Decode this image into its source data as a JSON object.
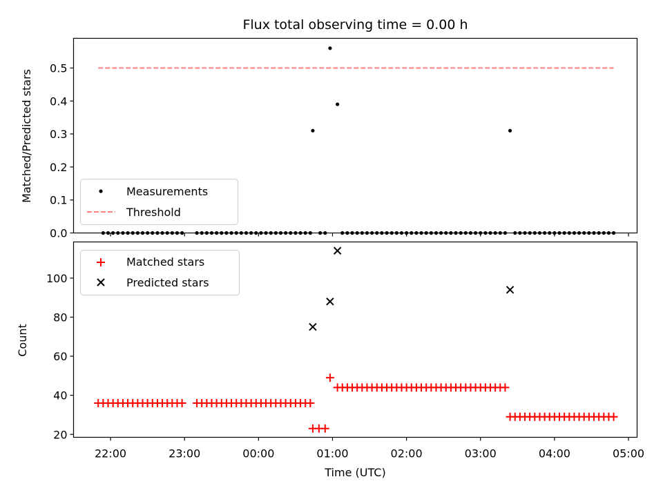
{
  "chart_data": [
    {
      "type": "scatter",
      "title": "Flux total observing time = 0.00 h",
      "xlabel": "",
      "ylabel": "Matched/Predicted stars",
      "ylim": [
        0,
        0.59
      ],
      "yticks": [
        0.0,
        0.1,
        0.2,
        0.3,
        0.4,
        0.5
      ],
      "ytick_labels": [
        "0.0",
        "0.1",
        "0.2",
        "0.3",
        "0.4",
        "0.5"
      ],
      "legend": {
        "position": "lower-left",
        "entries": [
          {
            "label": "Measurements",
            "marker": "dot",
            "color": "#000000"
          },
          {
            "label": "Threshold",
            "marker": "dashed-line",
            "color": "#ff7f7f"
          }
        ]
      },
      "series": [
        {
          "name": "Measurements",
          "color": "#000000",
          "points": [
            [
              "21:54",
              0
            ],
            [
              "21:58",
              0
            ],
            [
              "22:02",
              0
            ],
            [
              "22:06",
              0
            ],
            [
              "22:10",
              0
            ],
            [
              "22:14",
              0
            ],
            [
              "22:18",
              0
            ],
            [
              "22:22",
              0
            ],
            [
              "22:26",
              0
            ],
            [
              "22:30",
              0
            ],
            [
              "22:34",
              0
            ],
            [
              "22:38",
              0
            ],
            [
              "22:42",
              0
            ],
            [
              "22:46",
              0
            ],
            [
              "22:50",
              0
            ],
            [
              "22:54",
              0
            ],
            [
              "22:58",
              0
            ],
            [
              "23:10",
              0
            ],
            [
              "23:14",
              0
            ],
            [
              "23:18",
              0
            ],
            [
              "23:22",
              0
            ],
            [
              "23:26",
              0
            ],
            [
              "23:30",
              0
            ],
            [
              "23:34",
              0
            ],
            [
              "23:38",
              0
            ],
            [
              "23:42",
              0
            ],
            [
              "23:46",
              0
            ],
            [
              "23:50",
              0
            ],
            [
              "23:54",
              0
            ],
            [
              "23:58",
              0
            ],
            [
              "00:02",
              0
            ],
            [
              "00:06",
              0
            ],
            [
              "00:10",
              0
            ],
            [
              "00:14",
              0
            ],
            [
              "00:18",
              0
            ],
            [
              "00:22",
              0
            ],
            [
              "00:26",
              0
            ],
            [
              "00:30",
              0
            ],
            [
              "00:34",
              0
            ],
            [
              "00:38",
              0
            ],
            [
              "00:42",
              0
            ],
            [
              "00:44",
              0.31
            ],
            [
              "00:50",
              0
            ],
            [
              "00:54",
              0
            ],
            [
              "00:58",
              0.56
            ],
            [
              "01:04",
              0.39
            ],
            [
              "01:08",
              0
            ],
            [
              "01:12",
              0
            ],
            [
              "01:16",
              0
            ],
            [
              "01:20",
              0
            ],
            [
              "01:24",
              0
            ],
            [
              "01:28",
              0
            ],
            [
              "01:32",
              0
            ],
            [
              "01:36",
              0
            ],
            [
              "01:40",
              0
            ],
            [
              "01:44",
              0
            ],
            [
              "01:48",
              0
            ],
            [
              "01:52",
              0
            ],
            [
              "01:56",
              0
            ],
            [
              "02:00",
              0
            ],
            [
              "02:04",
              0
            ],
            [
              "02:08",
              0
            ],
            [
              "02:12",
              0
            ],
            [
              "02:16",
              0
            ],
            [
              "02:20",
              0
            ],
            [
              "02:24",
              0
            ],
            [
              "02:28",
              0
            ],
            [
              "02:32",
              0
            ],
            [
              "02:36",
              0
            ],
            [
              "02:40",
              0
            ],
            [
              "02:44",
              0
            ],
            [
              "02:48",
              0
            ],
            [
              "02:52",
              0
            ],
            [
              "02:56",
              0
            ],
            [
              "03:00",
              0
            ],
            [
              "03:04",
              0
            ],
            [
              "03:08",
              0
            ],
            [
              "03:12",
              0
            ],
            [
              "03:16",
              0
            ],
            [
              "03:20",
              0
            ],
            [
              "03:24",
              0.31
            ],
            [
              "03:28",
              0
            ],
            [
              "03:32",
              0
            ],
            [
              "03:36",
              0
            ],
            [
              "03:40",
              0
            ],
            [
              "03:44",
              0
            ],
            [
              "03:48",
              0
            ],
            [
              "03:52",
              0
            ],
            [
              "03:56",
              0
            ],
            [
              "04:00",
              0
            ],
            [
              "04:04",
              0
            ],
            [
              "04:08",
              0
            ],
            [
              "04:12",
              0
            ],
            [
              "04:16",
              0
            ],
            [
              "04:20",
              0
            ],
            [
              "04:24",
              0
            ],
            [
              "04:28",
              0
            ],
            [
              "04:32",
              0
            ],
            [
              "04:36",
              0
            ],
            [
              "04:40",
              0
            ],
            [
              "04:44",
              0
            ],
            [
              "04:48",
              0
            ]
          ]
        },
        {
          "name": "Threshold",
          "color": "#ff7f7f",
          "style": "dashed",
          "points": [
            [
              "21:50",
              0.5
            ],
            [
              "04:48",
              0.5
            ]
          ]
        }
      ]
    },
    {
      "type": "scatter",
      "title": "",
      "xlabel": "Time (UTC)",
      "ylabel": "Count",
      "ylim": [
        18.5,
        118.5
      ],
      "xlim": [
        "21:30",
        "05:07"
      ],
      "xticks": [
        "22:00",
        "23:00",
        "00:00",
        "01:00",
        "02:00",
        "03:00",
        "04:00",
        "05:00"
      ],
      "yticks": [
        20,
        40,
        60,
        80,
        100
      ],
      "ytick_labels": [
        "20",
        "40",
        "60",
        "80",
        "100"
      ],
      "legend": {
        "position": "upper-left",
        "entries": [
          {
            "label": "Matched stars",
            "marker": "plus",
            "color": "#ff0000"
          },
          {
            "label": "Predicted stars",
            "marker": "x",
            "color": "#000000"
          }
        ]
      },
      "series": [
        {
          "name": "Matched stars",
          "color": "#ff0000",
          "points": [
            [
              "21:50",
              36
            ],
            [
              "21:54",
              36
            ],
            [
              "21:58",
              36
            ],
            [
              "22:02",
              36
            ],
            [
              "22:06",
              36
            ],
            [
              "22:10",
              36
            ],
            [
              "22:14",
              36
            ],
            [
              "22:18",
              36
            ],
            [
              "22:22",
              36
            ],
            [
              "22:26",
              36
            ],
            [
              "22:30",
              36
            ],
            [
              "22:34",
              36
            ],
            [
              "22:38",
              36
            ],
            [
              "22:42",
              36
            ],
            [
              "22:46",
              36
            ],
            [
              "22:50",
              36
            ],
            [
              "22:54",
              36
            ],
            [
              "22:58",
              36
            ],
            [
              "23:10",
              36
            ],
            [
              "23:14",
              36
            ],
            [
              "23:18",
              36
            ],
            [
              "23:22",
              36
            ],
            [
              "23:26",
              36
            ],
            [
              "23:30",
              36
            ],
            [
              "23:34",
              36
            ],
            [
              "23:38",
              36
            ],
            [
              "23:42",
              36
            ],
            [
              "23:46",
              36
            ],
            [
              "23:50",
              36
            ],
            [
              "23:54",
              36
            ],
            [
              "23:58",
              36
            ],
            [
              "00:02",
              36
            ],
            [
              "00:06",
              36
            ],
            [
              "00:10",
              36
            ],
            [
              "00:14",
              36
            ],
            [
              "00:18",
              36
            ],
            [
              "00:22",
              36
            ],
            [
              "00:26",
              36
            ],
            [
              "00:30",
              36
            ],
            [
              "00:34",
              36
            ],
            [
              "00:38",
              36
            ],
            [
              "00:42",
              36
            ],
            [
              "00:44",
              23
            ],
            [
              "00:49",
              23
            ],
            [
              "00:54",
              23
            ],
            [
              "00:58",
              49
            ],
            [
              "01:04",
              44
            ],
            [
              "01:08",
              44
            ],
            [
              "01:12",
              44
            ],
            [
              "01:16",
              44
            ],
            [
              "01:20",
              44
            ],
            [
              "01:24",
              44
            ],
            [
              "01:28",
              44
            ],
            [
              "01:32",
              44
            ],
            [
              "01:36",
              44
            ],
            [
              "01:40",
              44
            ],
            [
              "01:44",
              44
            ],
            [
              "01:48",
              44
            ],
            [
              "01:52",
              44
            ],
            [
              "01:56",
              44
            ],
            [
              "02:00",
              44
            ],
            [
              "02:04",
              44
            ],
            [
              "02:08",
              44
            ],
            [
              "02:12",
              44
            ],
            [
              "02:16",
              44
            ],
            [
              "02:20",
              44
            ],
            [
              "02:24",
              44
            ],
            [
              "02:28",
              44
            ],
            [
              "02:32",
              44
            ],
            [
              "02:36",
              44
            ],
            [
              "02:40",
              44
            ],
            [
              "02:44",
              44
            ],
            [
              "02:48",
              44
            ],
            [
              "02:52",
              44
            ],
            [
              "02:56",
              44
            ],
            [
              "03:00",
              44
            ],
            [
              "03:04",
              44
            ],
            [
              "03:08",
              44
            ],
            [
              "03:12",
              44
            ],
            [
              "03:16",
              44
            ],
            [
              "03:20",
              44
            ],
            [
              "03:24",
              29
            ],
            [
              "03:28",
              29
            ],
            [
              "03:32",
              29
            ],
            [
              "03:36",
              29
            ],
            [
              "03:40",
              29
            ],
            [
              "03:44",
              29
            ],
            [
              "03:48",
              29
            ],
            [
              "03:52",
              29
            ],
            [
              "03:56",
              29
            ],
            [
              "04:00",
              29
            ],
            [
              "04:04",
              29
            ],
            [
              "04:08",
              29
            ],
            [
              "04:12",
              29
            ],
            [
              "04:16",
              29
            ],
            [
              "04:20",
              29
            ],
            [
              "04:24",
              29
            ],
            [
              "04:28",
              29
            ],
            [
              "04:32",
              29
            ],
            [
              "04:36",
              29
            ],
            [
              "04:40",
              29
            ],
            [
              "04:44",
              29
            ],
            [
              "04:48",
              29
            ]
          ]
        },
        {
          "name": "Predicted stars",
          "color": "#000000",
          "points": [
            [
              "00:44",
              75
            ],
            [
              "00:58",
              88
            ],
            [
              "01:04",
              114
            ],
            [
              "03:24",
              94
            ]
          ]
        }
      ]
    }
  ]
}
